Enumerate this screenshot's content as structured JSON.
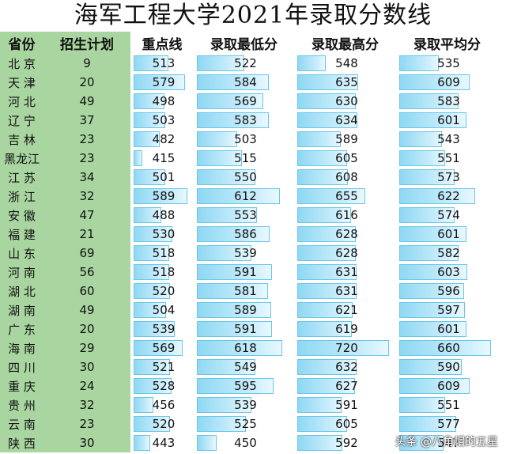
{
  "title": "海军工程大学2021年录取分数线",
  "headers": [
    "省份",
    "招生计划",
    "重点线",
    "录取最低分",
    "录取最高分",
    "录取平均分"
  ],
  "rows": [
    {
      "province": "北 京",
      "plan": 9,
      "key_line": 513,
      "min": 522,
      "max": 548,
      "avg": 535
    },
    {
      "province": "天 津",
      "plan": 20,
      "key_line": 579,
      "min": 584,
      "max": 635,
      "avg": 609
    },
    {
      "province": "河 北",
      "plan": 49,
      "key_line": 498,
      "min": 569,
      "max": 630,
      "avg": 583
    },
    {
      "province": "辽 宁",
      "plan": 37,
      "key_line": 503,
      "min": 583,
      "max": 634,
      "avg": 601
    },
    {
      "province": "吉 林",
      "plan": 23,
      "key_line": 482,
      "min": 503,
      "max": 589,
      "avg": 543
    },
    {
      "province": "黑龙江",
      "plan": 23,
      "key_line": 415,
      "min": 515,
      "max": 605,
      "avg": 551
    },
    {
      "province": "江 苏",
      "plan": 34,
      "key_line": 501,
      "min": 550,
      "max": 608,
      "avg": 573
    },
    {
      "province": "浙 江",
      "plan": 32,
      "key_line": 589,
      "min": 612,
      "max": 655,
      "avg": 622
    },
    {
      "province": "安 徽",
      "plan": 47,
      "key_line": 488,
      "min": 553,
      "max": 616,
      "avg": 574
    },
    {
      "province": "福 建",
      "plan": 21,
      "key_line": 530,
      "min": 586,
      "max": 628,
      "avg": 601
    },
    {
      "province": "山 东",
      "plan": 69,
      "key_line": 518,
      "min": 539,
      "max": 628,
      "avg": 582
    },
    {
      "province": "河 南",
      "plan": 56,
      "key_line": 518,
      "min": 591,
      "max": 631,
      "avg": 603
    },
    {
      "province": "湖 北",
      "plan": 60,
      "key_line": 520,
      "min": 581,
      "max": 631,
      "avg": 596
    },
    {
      "province": "湖 南",
      "plan": 49,
      "key_line": 504,
      "min": 589,
      "max": 621,
      "avg": 597
    },
    {
      "province": "广 东",
      "plan": 20,
      "key_line": 539,
      "min": 591,
      "max": 619,
      "avg": 601
    },
    {
      "province": "海 南",
      "plan": 29,
      "key_line": 569,
      "min": 618,
      "max": 720,
      "avg": 660
    },
    {
      "province": "四 川",
      "plan": 30,
      "key_line": 521,
      "min": 549,
      "max": 632,
      "avg": 590
    },
    {
      "province": "重 庆",
      "plan": 24,
      "key_line": 528,
      "min": 595,
      "max": 627,
      "avg": 609
    },
    {
      "province": "贵 州",
      "plan": 32,
      "key_line": 456,
      "min": 539,
      "max": 591,
      "avg": 551
    },
    {
      "province": "云 南",
      "plan": 23,
      "key_line": 520,
      "min": 525,
      "max": 605,
      "avg": 577
    },
    {
      "province": "陕 西",
      "plan": 30,
      "key_line": 443,
      "min": 450,
      "max": 592,
      "avg": 547
    }
  ],
  "watermark": "头条 @八角帽的五星",
  "colors": {
    "header_green": "#a9d5a0",
    "bar_blue": "#8fd8f3"
  }
}
